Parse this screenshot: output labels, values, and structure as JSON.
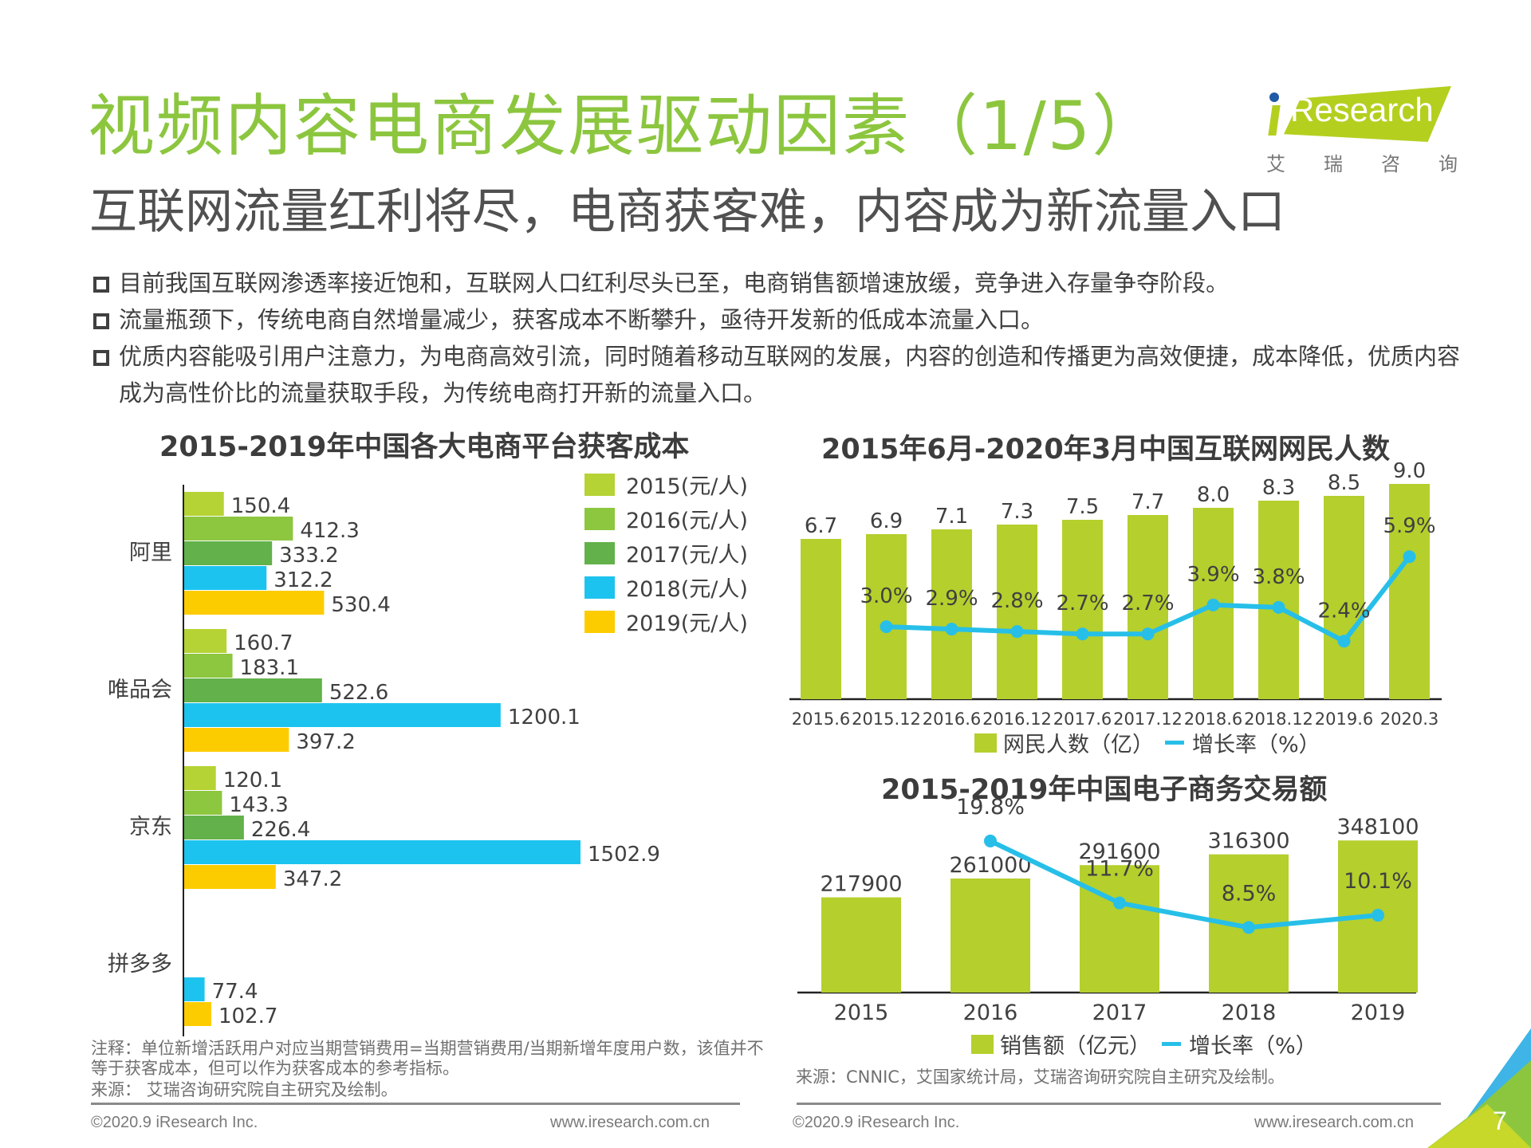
{
  "header": {
    "title": "视频内容电商发展驱动因素（1/5）",
    "subtitle": "互联网流量红利将尽，电商获客难，内容成为新流量入口",
    "logo": {
      "brand": "Research",
      "brand_prefix_icon": "i-dot-icon",
      "cn_chars": [
        "艾",
        "瑞",
        "咨",
        "询"
      ]
    }
  },
  "bullets": [
    "目前我国互联网渗透率接近饱和，互联网人口红利尽头已至，电商销售额增速放缓，竞争进入存量争夺阶段。",
    "流量瓶颈下，传统电商自然增量减少，获客成本不断攀升，亟待开发新的低成本流量入口。",
    "优质内容能吸引用户注意力，为电商高效引流，同时随着移动互联网的发展，内容的创造和传播更为高效便捷，成本降低，优质内容成为高性价比的流量获取手段，为传统电商打开新的流量入口。"
  ],
  "colors": {
    "title_green": "#8cc63f",
    "bar_green": "#b5cf2d",
    "line_blue": "#27bfe8",
    "y2015": "#b5d334",
    "y2016": "#8dc63f",
    "y2017": "#62b14a",
    "y2018": "#1dc3ef",
    "y2019": "#fdcc00"
  },
  "chart_data": [
    {
      "id": "acquisition-cost",
      "type": "bar",
      "orientation": "horizontal",
      "title": "2015-2019年中国各大电商平台获客成本",
      "categories": [
        "阿里",
        "唯品会",
        "京东",
        "拼多多"
      ],
      "series": [
        {
          "name": "2015(元/人)",
          "color_key": "y2015",
          "values": [
            150.4,
            160.7,
            120.1,
            null
          ]
        },
        {
          "name": "2016(元/人)",
          "color_key": "y2016",
          "values": [
            412.3,
            183.1,
            143.3,
            null
          ]
        },
        {
          "name": "2017(元/人)",
          "color_key": "y2017",
          "values": [
            333.2,
            522.6,
            226.4,
            null
          ]
        },
        {
          "name": "2018(元/人)",
          "color_key": "y2018",
          "values": [
            312.2,
            1200.1,
            1502.9,
            77.4
          ]
        },
        {
          "name": "2019(元/人)",
          "color_key": "y2019",
          "values": [
            530.4,
            397.2,
            347.2,
            102.7
          ]
        }
      ],
      "xlim": [
        0,
        1600
      ],
      "legend": "top-right",
      "grid": false,
      "note": "注释：单位新增活跃用户对应当期营销费用=当期营销费用/当期新增年度用户数，该值并不等于获客成本，但可以作为获客成本的参考指标。",
      "source": "来源： 艾瑞咨询研究院自主研究及绘制。"
    },
    {
      "id": "netizens",
      "type": "bar+line",
      "title": "2015年6月-2020年3月中国互联网网民人数",
      "categories": [
        "2015.6",
        "2015.12",
        "2016.6",
        "2016.12",
        "2017.6",
        "2017.12",
        "2018.6",
        "2018.12",
        "2019.6",
        "2020.3"
      ],
      "series": [
        {
          "name": "网民人数（亿）",
          "type": "bar",
          "values": [
            6.7,
            6.9,
            7.1,
            7.3,
            7.5,
            7.7,
            8.0,
            8.3,
            8.5,
            9.0
          ],
          "labels": [
            "6.7",
            "6.9",
            "7.1",
            "7.3",
            "7.5",
            "7.7",
            "8.0",
            "8.3",
            "8.5",
            "9.0"
          ]
        },
        {
          "name": "增长率（%）",
          "type": "line",
          "values": [
            null,
            3.0,
            2.9,
            2.8,
            2.7,
            2.7,
            3.9,
            3.8,
            2.4,
            5.9
          ],
          "labels": [
            null,
            "3.0%",
            "2.9%",
            "2.8%",
            "2.7%",
            "2.7%",
            "3.9%",
            "3.8%",
            "2.4%",
            "5.9%"
          ]
        }
      ],
      "ylim": [
        0,
        10
      ],
      "legend": "bottom",
      "grid": false
    },
    {
      "id": "ecommerce-volume",
      "type": "bar+line",
      "title": "2015-2019年中国电子商务交易额",
      "categories": [
        "2015",
        "2016",
        "2017",
        "2018",
        "2019"
      ],
      "series": [
        {
          "name": "销售额（亿元）",
          "type": "bar",
          "values": [
            217900,
            261000,
            291600,
            316300,
            348100
          ],
          "labels": [
            "217900",
            "261000",
            "291600",
            "316300",
            "348100"
          ]
        },
        {
          "name": "增长率（%）",
          "type": "line",
          "values": [
            null,
            19.8,
            11.7,
            8.5,
            10.1
          ],
          "labels": [
            null,
            "19.8%",
            "11.7%",
            "8.5%",
            "10.1%"
          ]
        }
      ],
      "ylim": [
        0,
        400000
      ],
      "legend": "bottom",
      "grid": false,
      "source": "来源：CNNIC，艾国家统计局，艾瑞咨询研究院自主研究及绘制。"
    }
  ],
  "footer": {
    "copyright": "©2020.9 iResearch Inc.",
    "url": "www.iresearch.com.cn",
    "page_number": "7"
  }
}
